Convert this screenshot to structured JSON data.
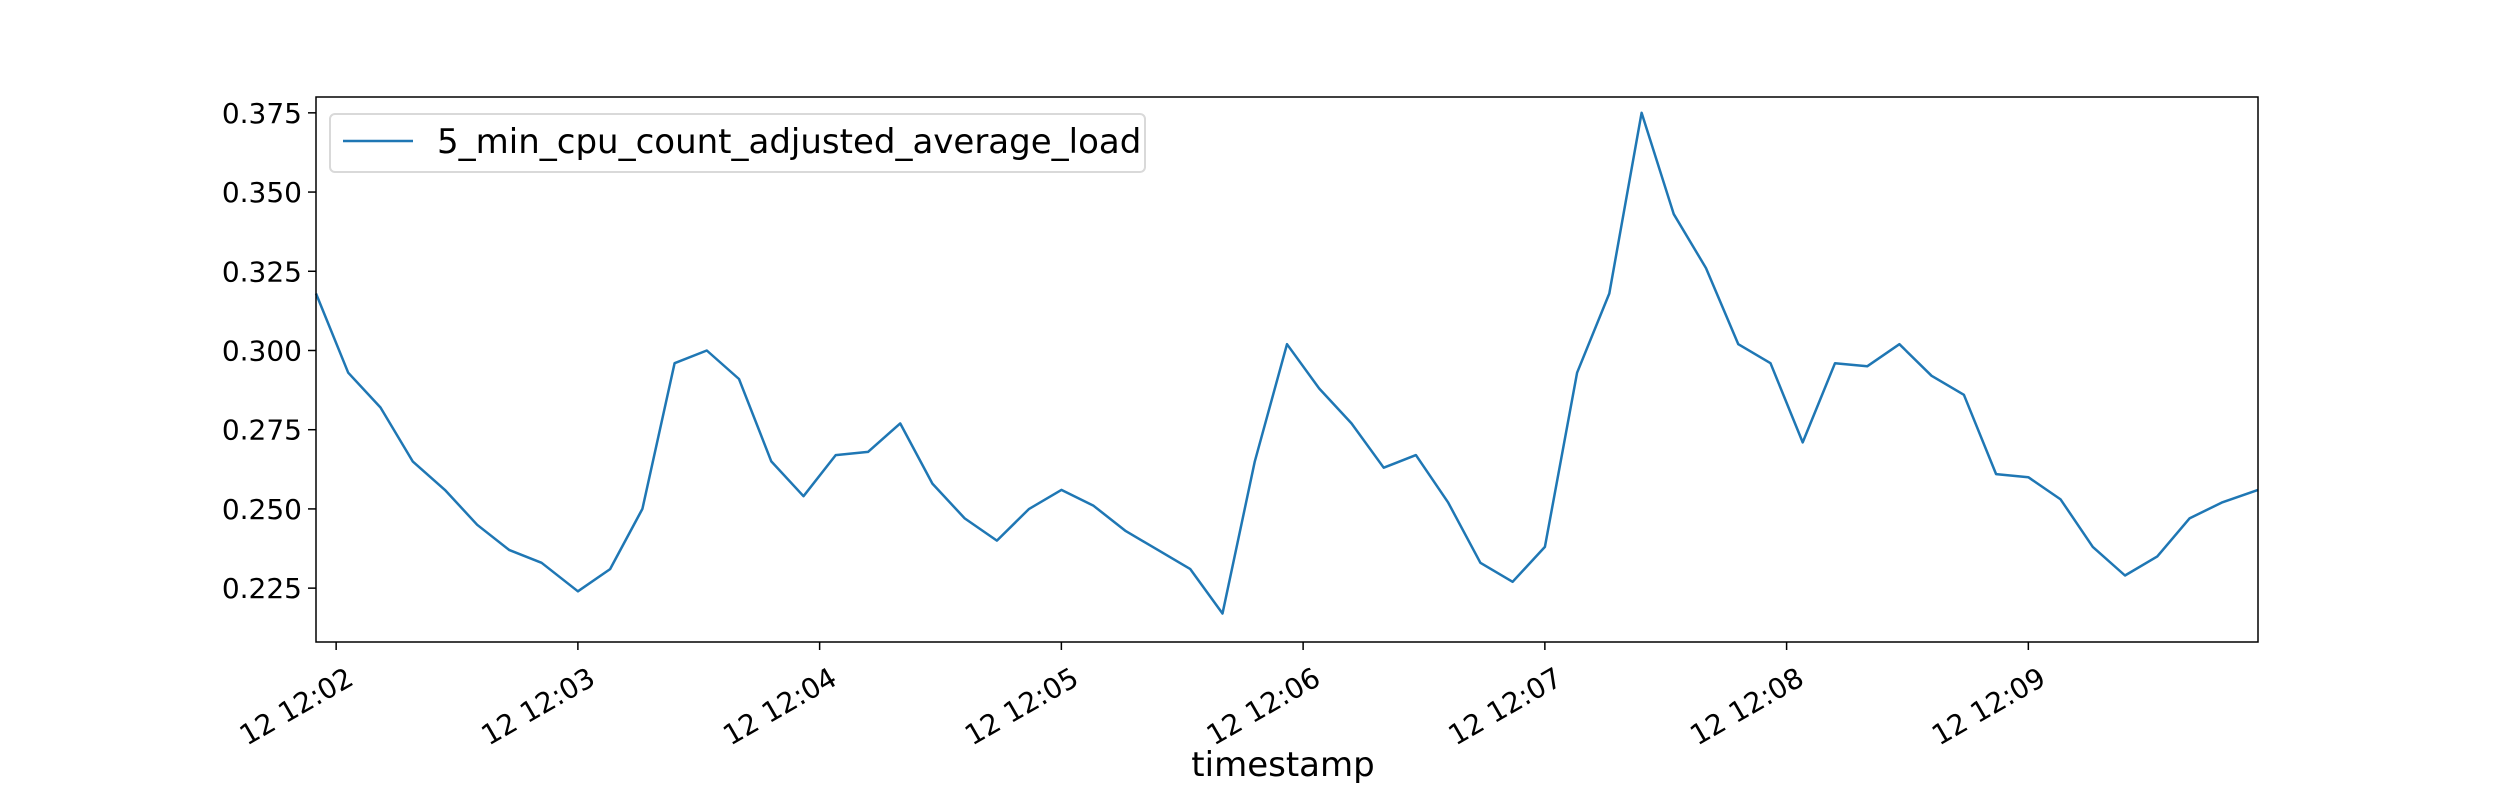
{
  "chart_data": {
    "type": "line",
    "title": "",
    "xlabel": "timestamp",
    "ylabel": "",
    "grid": false,
    "legend_position": "top-left",
    "line_color": "#1f77b4",
    "xlim": [
      "12:01:55",
      "12:09:57"
    ],
    "ylim": [
      0.208,
      0.38
    ],
    "x_ticks": [
      {
        "label": "12 12:02",
        "t": "12:02:00"
      },
      {
        "label": "12 12:03",
        "t": "12:03:00"
      },
      {
        "label": "12 12:04",
        "t": "12:04:00"
      },
      {
        "label": "12 12:05",
        "t": "12:05:00"
      },
      {
        "label": "12 12:06",
        "t": "12:06:00"
      },
      {
        "label": "12 12:07",
        "t": "12:07:00"
      },
      {
        "label": "12 12:08",
        "t": "12:08:00"
      },
      {
        "label": "12 12:09",
        "t": "12:09:00"
      }
    ],
    "y_ticks": [
      {
        "label": "0.225",
        "value": 0.225
      },
      {
        "label": "0.250",
        "value": 0.25
      },
      {
        "label": "0.275",
        "value": 0.275
      },
      {
        "label": "0.300",
        "value": 0.3
      },
      {
        "label": "0.325",
        "value": 0.325
      },
      {
        "label": "0.350",
        "value": 0.35
      },
      {
        "label": "0.375",
        "value": 0.375
      }
    ],
    "series": [
      {
        "name": "5_min_cpu_count_adjusted_average_load",
        "x": [
          "12:01:55",
          "12:02:03",
          "12:02:11",
          "12:02:19",
          "12:02:27",
          "12:02:35",
          "12:02:43",
          "12:02:51",
          "12:03:00",
          "12:03:08",
          "12:03:16",
          "12:03:24",
          "12:03:32",
          "12:03:40",
          "12:03:48",
          "12:03:56",
          "12:04:04",
          "12:04:12",
          "12:04:20",
          "12:04:28",
          "12:04:36",
          "12:04:44",
          "12:04:52",
          "12:05:00",
          "12:05:08",
          "12:05:16",
          "12:05:24",
          "12:05:32",
          "12:05:40",
          "12:05:48",
          "12:05:56",
          "12:06:04",
          "12:06:12",
          "12:06:20",
          "12:06:28",
          "12:06:36",
          "12:06:44",
          "12:06:52",
          "12:07:00",
          "12:07:08",
          "12:07:16",
          "12:07:24",
          "12:07:32",
          "12:07:40",
          "12:07:48",
          "12:07:56",
          "12:08:04",
          "12:08:12",
          "12:08:20",
          "12:08:28",
          "12:08:36",
          "12:08:44",
          "12:08:52",
          "12:09:00",
          "12:09:08",
          "12:09:16",
          "12:09:24",
          "12:09:32",
          "12:09:40",
          "12:09:48",
          "12:09:57"
        ],
        "values": [
          0.318,
          0.293,
          0.282,
          0.265,
          0.256,
          0.245,
          0.237,
          0.233,
          0.224,
          0.231,
          0.25,
          0.296,
          0.3,
          0.291,
          0.265,
          0.254,
          0.267,
          0.268,
          0.277,
          0.258,
          0.247,
          0.24,
          0.25,
          0.256,
          0.251,
          0.243,
          0.237,
          0.231,
          0.217,
          0.265,
          0.302,
          0.288,
          0.277,
          0.263,
          0.267,
          0.252,
          0.233,
          0.227,
          0.238,
          0.293,
          0.318,
          0.375,
          0.343,
          0.326,
          0.302,
          0.296,
          0.271,
          0.296,
          0.295,
          0.302,
          0.292,
          0.286,
          0.261,
          0.26,
          0.253,
          0.238,
          0.229,
          0.235,
          0.247,
          0.252,
          0.256
        ]
      }
    ]
  }
}
